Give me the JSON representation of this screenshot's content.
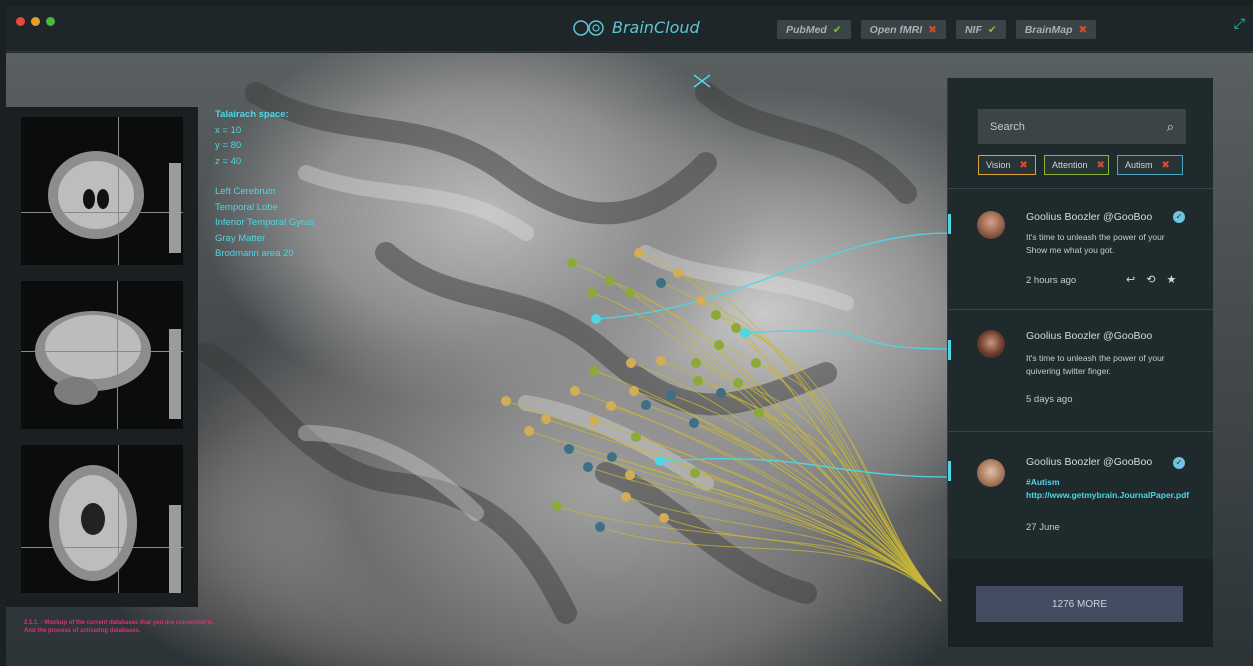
{
  "app": {
    "title": "BrainCloud"
  },
  "databases": [
    {
      "name": "PubMed",
      "active": true
    },
    {
      "name": "Open fMRI",
      "active": false
    },
    {
      "name": "NIF",
      "active": true
    },
    {
      "name": "BrainMap",
      "active": false
    }
  ],
  "talairach": {
    "title": "Talairach space:",
    "x": "x = 10",
    "y": "y =  80",
    "z": "z = 40",
    "labels": [
      "Left Cerebrum",
      "Temporal Lobe",
      "Inferior Temporal Gyrus",
      "Gray Matter",
      "Brodmann area 20"
    ]
  },
  "note": {
    "line1": "2.1.1. - Mockup of the current databases that you are connected to.",
    "line2": "And the process of activating databases."
  },
  "search": {
    "placeholder": "Search"
  },
  "tags": [
    {
      "label": "Vision",
      "color": "#d7a23a"
    },
    {
      "label": "Attention",
      "color": "#8ab63a"
    },
    {
      "label": "Autism",
      "color": "#4aa6c5"
    }
  ],
  "tweets": [
    {
      "author": "Goolius Boozler @GooBoo",
      "verified": true,
      "line1": "It's time to unleash the power of your",
      "line2": "Show me what you got.",
      "time": "2 hours ago"
    },
    {
      "author": "Goolius Boozler @GooBoo",
      "verified": false,
      "line1": "It's time to unleash the power of your",
      "line2": "quivering twitter finger.",
      "time": "5  days ago"
    },
    {
      "author": "Goolius Boozler @GooBoo",
      "verified": true,
      "line1": "#Autism",
      "line2": "http://www.getmybrain.JournalPaper.pdf",
      "time": "27 June"
    }
  ],
  "more_label": "1276 MORE",
  "colors": {
    "accent": "#4fd6e4",
    "vision": "#d7a23a",
    "attention": "#8ab63a",
    "autism": "#4aa6c5"
  }
}
